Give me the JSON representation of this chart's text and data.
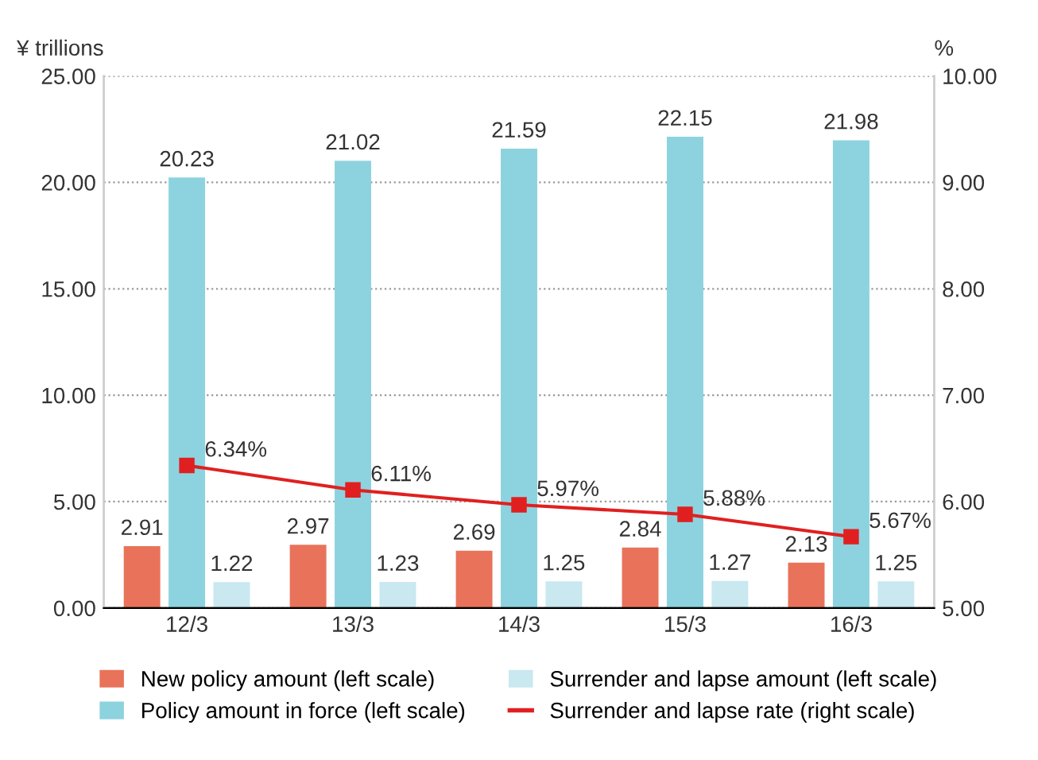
{
  "chart_data": {
    "type": "bar",
    "ylabel": "¥ trillions",
    "y2label": "%",
    "categories": [
      "12/3",
      "13/3",
      "14/3",
      "15/3",
      "16/3"
    ],
    "series": [
      {
        "name": "New policy amount (left scale)",
        "color": "#e8735a",
        "values": [
          2.91,
          2.97,
          2.69,
          2.84,
          2.13
        ],
        "value_labels": [
          "2.91",
          "2.97",
          "2.69",
          "2.84",
          "2.13"
        ]
      },
      {
        "name": "Policy amount in force (left scale)",
        "color": "#8dd3df",
        "values": [
          20.23,
          21.02,
          21.59,
          22.15,
          21.98
        ],
        "value_labels": [
          "20.23",
          "21.02",
          "21.59",
          "22.15",
          "21.98"
        ]
      },
      {
        "name": "Surrender and lapse amount (left scale)",
        "color": "#c9e8f0",
        "values": [
          1.22,
          1.23,
          1.25,
          1.27,
          1.25
        ],
        "value_labels": [
          "1.22",
          "1.23",
          "1.25",
          "1.27",
          "1.25"
        ]
      },
      {
        "name": "Surrender and lapse rate (right scale)",
        "type": "line",
        "axis": "y2",
        "color": "#e02020",
        "marker": "square",
        "values": [
          6.34,
          6.11,
          5.97,
          5.88,
          5.67
        ],
        "value_labels": [
          "6.34%",
          "6.11%",
          "5.97%",
          "5.88%",
          "5.67%"
        ]
      }
    ],
    "ylim": [
      0,
      25
    ],
    "yticks": [
      {
        "value": 0,
        "label": "0.00"
      },
      {
        "value": 5,
        "label": "5.00"
      },
      {
        "value": 10,
        "label": "10.00"
      },
      {
        "value": 15,
        "label": "15.00"
      },
      {
        "value": 20,
        "label": "20.00"
      },
      {
        "value": 25,
        "label": "25.00"
      }
    ],
    "y2lim": [
      5,
      10
    ],
    "y2ticks": [
      {
        "value": 5,
        "label": "5.00"
      },
      {
        "value": 6,
        "label": "6.00"
      },
      {
        "value": 7,
        "label": "7.00"
      },
      {
        "value": 8,
        "label": "8.00"
      },
      {
        "value": 9,
        "label": "9.00"
      },
      {
        "value": 10,
        "label": "10.00"
      }
    ],
    "grid": "y",
    "legend": "bottom"
  }
}
